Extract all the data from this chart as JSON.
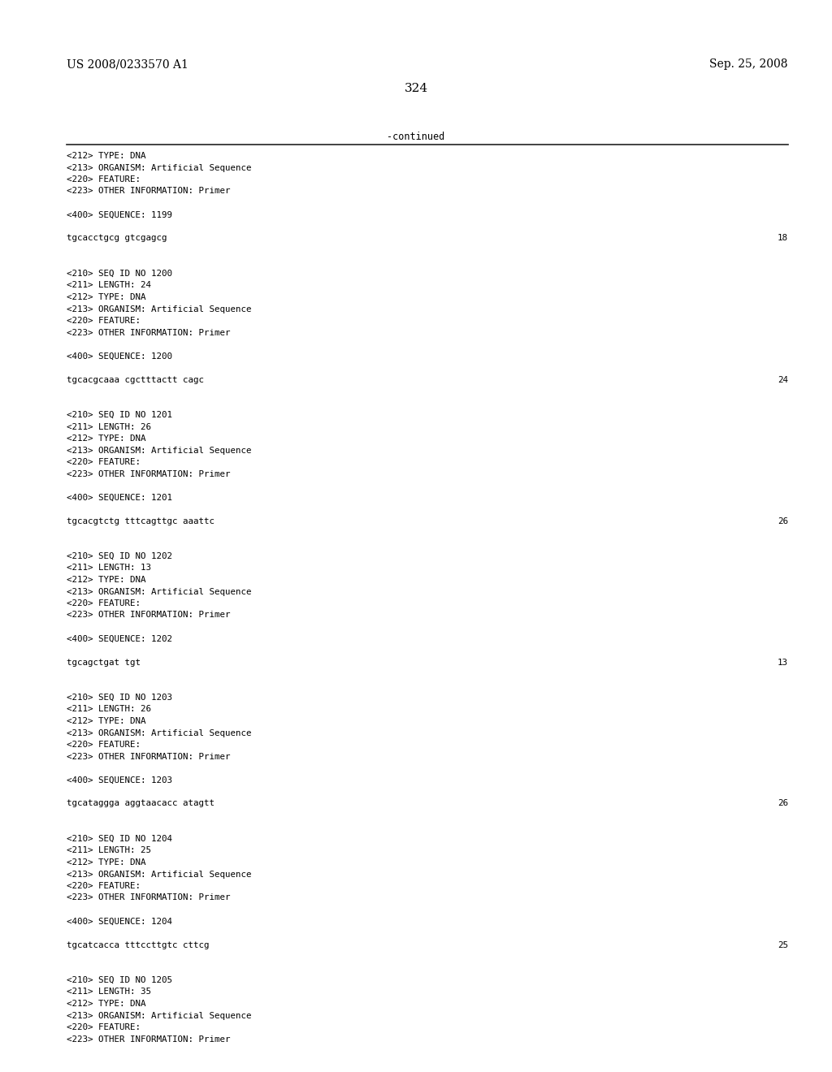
{
  "header_left": "US 2008/0233570 A1",
  "header_right": "Sep. 25, 2008",
  "page_number": "324",
  "continued_text": "-continued",
  "background_color": "#ffffff",
  "text_color": "#000000",
  "font_size_header": 10.0,
  "font_size_body": 7.8,
  "font_size_page": 11.0,
  "font_size_continued": 8.5,
  "lines": [
    {
      "text": "<212> TYPE: DNA",
      "seq_num": null
    },
    {
      "text": "<213> ORGANISM: Artificial Sequence",
      "seq_num": null
    },
    {
      "text": "<220> FEATURE:",
      "seq_num": null
    },
    {
      "text": "<223> OTHER INFORMATION: Primer",
      "seq_num": null
    },
    {
      "text": "",
      "seq_num": null
    },
    {
      "text": "<400> SEQUENCE: 1199",
      "seq_num": null
    },
    {
      "text": "",
      "seq_num": null
    },
    {
      "text": "tgcacctgcg gtcgagcg",
      "seq_num": "18"
    },
    {
      "text": "",
      "seq_num": null
    },
    {
      "text": "",
      "seq_num": null
    },
    {
      "text": "<210> SEQ ID NO 1200",
      "seq_num": null
    },
    {
      "text": "<211> LENGTH: 24",
      "seq_num": null
    },
    {
      "text": "<212> TYPE: DNA",
      "seq_num": null
    },
    {
      "text": "<213> ORGANISM: Artificial Sequence",
      "seq_num": null
    },
    {
      "text": "<220> FEATURE:",
      "seq_num": null
    },
    {
      "text": "<223> OTHER INFORMATION: Primer",
      "seq_num": null
    },
    {
      "text": "",
      "seq_num": null
    },
    {
      "text": "<400> SEQUENCE: 1200",
      "seq_num": null
    },
    {
      "text": "",
      "seq_num": null
    },
    {
      "text": "tgcacgcaaa cgctttactt cagc",
      "seq_num": "24"
    },
    {
      "text": "",
      "seq_num": null
    },
    {
      "text": "",
      "seq_num": null
    },
    {
      "text": "<210> SEQ ID NO 1201",
      "seq_num": null
    },
    {
      "text": "<211> LENGTH: 26",
      "seq_num": null
    },
    {
      "text": "<212> TYPE: DNA",
      "seq_num": null
    },
    {
      "text": "<213> ORGANISM: Artificial Sequence",
      "seq_num": null
    },
    {
      "text": "<220> FEATURE:",
      "seq_num": null
    },
    {
      "text": "<223> OTHER INFORMATION: Primer",
      "seq_num": null
    },
    {
      "text": "",
      "seq_num": null
    },
    {
      "text": "<400> SEQUENCE: 1201",
      "seq_num": null
    },
    {
      "text": "",
      "seq_num": null
    },
    {
      "text": "tgcacgtctg tttcagttgc aaattc",
      "seq_num": "26"
    },
    {
      "text": "",
      "seq_num": null
    },
    {
      "text": "",
      "seq_num": null
    },
    {
      "text": "<210> SEQ ID NO 1202",
      "seq_num": null
    },
    {
      "text": "<211> LENGTH: 13",
      "seq_num": null
    },
    {
      "text": "<212> TYPE: DNA",
      "seq_num": null
    },
    {
      "text": "<213> ORGANISM: Artificial Sequence",
      "seq_num": null
    },
    {
      "text": "<220> FEATURE:",
      "seq_num": null
    },
    {
      "text": "<223> OTHER INFORMATION: Primer",
      "seq_num": null
    },
    {
      "text": "",
      "seq_num": null
    },
    {
      "text": "<400> SEQUENCE: 1202",
      "seq_num": null
    },
    {
      "text": "",
      "seq_num": null
    },
    {
      "text": "tgcagctgat tgt",
      "seq_num": "13"
    },
    {
      "text": "",
      "seq_num": null
    },
    {
      "text": "",
      "seq_num": null
    },
    {
      "text": "<210> SEQ ID NO 1203",
      "seq_num": null
    },
    {
      "text": "<211> LENGTH: 26",
      "seq_num": null
    },
    {
      "text": "<212> TYPE: DNA",
      "seq_num": null
    },
    {
      "text": "<213> ORGANISM: Artificial Sequence",
      "seq_num": null
    },
    {
      "text": "<220> FEATURE:",
      "seq_num": null
    },
    {
      "text": "<223> OTHER INFORMATION: Primer",
      "seq_num": null
    },
    {
      "text": "",
      "seq_num": null
    },
    {
      "text": "<400> SEQUENCE: 1203",
      "seq_num": null
    },
    {
      "text": "",
      "seq_num": null
    },
    {
      "text": "tgcataggga aggtaacacc atagtt",
      "seq_num": "26"
    },
    {
      "text": "",
      "seq_num": null
    },
    {
      "text": "",
      "seq_num": null
    },
    {
      "text": "<210> SEQ ID NO 1204",
      "seq_num": null
    },
    {
      "text": "<211> LENGTH: 25",
      "seq_num": null
    },
    {
      "text": "<212> TYPE: DNA",
      "seq_num": null
    },
    {
      "text": "<213> ORGANISM: Artificial Sequence",
      "seq_num": null
    },
    {
      "text": "<220> FEATURE:",
      "seq_num": null
    },
    {
      "text": "<223> OTHER INFORMATION: Primer",
      "seq_num": null
    },
    {
      "text": "",
      "seq_num": null
    },
    {
      "text": "<400> SEQUENCE: 1204",
      "seq_num": null
    },
    {
      "text": "",
      "seq_num": null
    },
    {
      "text": "tgcatcacca tttccttgtc cttcg",
      "seq_num": "25"
    },
    {
      "text": "",
      "seq_num": null
    },
    {
      "text": "",
      "seq_num": null
    },
    {
      "text": "<210> SEQ ID NO 1205",
      "seq_num": null
    },
    {
      "text": "<211> LENGTH: 35",
      "seq_num": null
    },
    {
      "text": "<212> TYPE: DNA",
      "seq_num": null
    },
    {
      "text": "<213> ORGANISM: Artificial Sequence",
      "seq_num": null
    },
    {
      "text": "<220> FEATURE:",
      "seq_num": null
    },
    {
      "text": "<223> OTHER INFORMATION: Primer",
      "seq_num": null
    }
  ]
}
